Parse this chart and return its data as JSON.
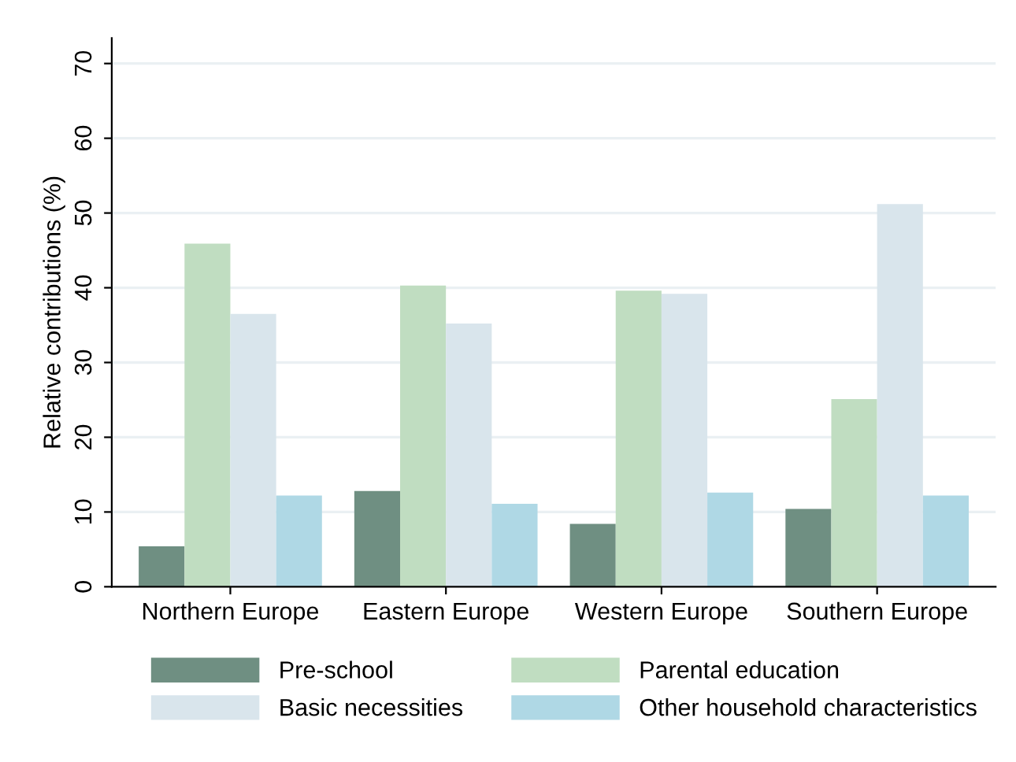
{
  "chart_data": {
    "type": "bar",
    "ylabel": "Relative contributions (%)",
    "categories": [
      "Northern Europe",
      "Eastern Europe",
      "Western Europe",
      "Southern Europe"
    ],
    "series": [
      {
        "name": "Pre-school",
        "color": "#6f8f82",
        "values": [
          5.4,
          12.8,
          8.4,
          10.4
        ]
      },
      {
        "name": "Parental education",
        "color": "#c0ddc1",
        "values": [
          45.9,
          40.3,
          39.6,
          25.1
        ]
      },
      {
        "name": "Basic necessities",
        "color": "#d9e5ec",
        "values": [
          36.5,
          35.2,
          39.2,
          51.2
        ]
      },
      {
        "name": "Other household characteristics",
        "color": "#afd8e5",
        "values": [
          12.2,
          11.1,
          12.6,
          12.2
        ]
      }
    ],
    "ylim": [
      0,
      73.4
    ],
    "yticks": [
      0,
      10,
      20,
      30,
      40,
      50,
      60,
      70
    ],
    "grid": "y",
    "legend": "bottom"
  }
}
